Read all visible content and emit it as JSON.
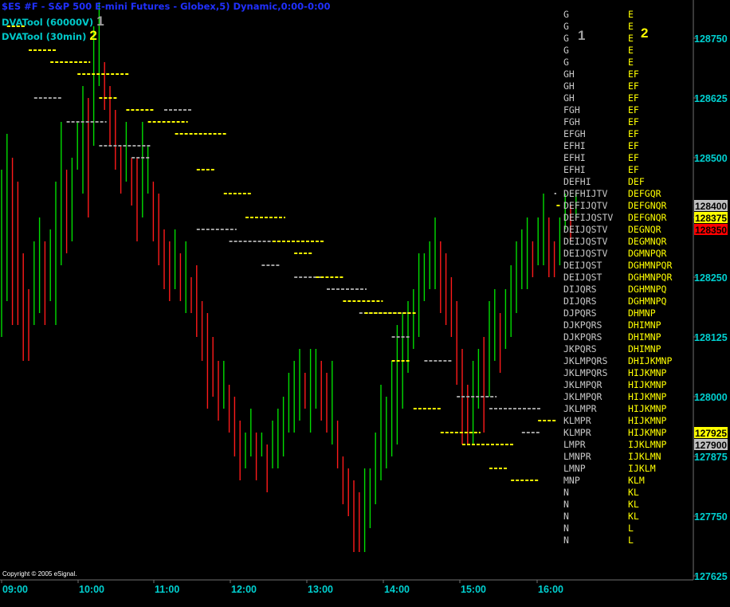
{
  "header": {
    "title": "$ES #F - S&P 500 E-mini Futures - Globex,5) Dynamic,0:00-0:00",
    "study1_label": "DVATool (60000V)",
    "study1_num": "1",
    "study2_label": "DVATool (30min)",
    "study2_num": "2"
  },
  "copyright": "Copyright © 2005 eSignal.",
  "colors": {
    "background": "#000000",
    "title": "#2030ff",
    "study_label": "#00c8c8",
    "axis_text": "#00d0d0",
    "up_bar": "#00dd00",
    "down_bar": "#ff1a1a",
    "study1": "#a0a0a0",
    "study2": "#ffff00",
    "price_gray_tag": "#c0c0c0",
    "price_yellow_tag": "#ffff00",
    "price_red_tag": "#ff0000"
  },
  "chart_data": {
    "type": "ohlc",
    "x_tick_labels": [
      "09:00",
      "10:00",
      "11:00",
      "12:00",
      "13:00",
      "14:00",
      "15:00",
      "16:00"
    ],
    "y_tick_values": [
      1287.5,
      1286.25,
      1285.0,
      1283.75,
      1282.5,
      1281.25,
      1280.0,
      1278.75,
      1277.5,
      1276.25
    ],
    "y_tick_labels": [
      "128750",
      "128625",
      "128500",
      "128375",
      "128250",
      "128125",
      "128000",
      "127875",
      "127750",
      "127625"
    ],
    "ylim": [
      1276.25,
      1288.25
    ],
    "price_tags": [
      {
        "label": "128400",
        "color": "gray"
      },
      {
        "label": "128375",
        "color": "yellow"
      },
      {
        "label": "128350",
        "color": "red"
      },
      {
        "label": "127925",
        "color": "yellow"
      },
      {
        "label": "127900",
        "color": "gray"
      }
    ],
    "tpo_profile": {
      "headers": {
        "col1": "1",
        "col2": "2"
      },
      "rows": [
        {
          "price": 1288.0,
          "c1": "G",
          "c2": "E"
        },
        {
          "price": 1287.75,
          "c1": "G",
          "c2": "E"
        },
        {
          "price": 1287.5,
          "c1": "G",
          "c2": "E"
        },
        {
          "price": 1287.25,
          "c1": "G",
          "c2": "E"
        },
        {
          "price": 1287.0,
          "c1": "G",
          "c2": "E"
        },
        {
          "price": 1286.75,
          "c1": "GH",
          "c2": "EF"
        },
        {
          "price": 1286.5,
          "c1": "GH",
          "c2": "EF"
        },
        {
          "price": 1286.25,
          "c1": "GH",
          "c2": "EF"
        },
        {
          "price": 1286.0,
          "c1": "FGH",
          "c2": "EF"
        },
        {
          "price": 1285.75,
          "c1": "FGH",
          "c2": "EF"
        },
        {
          "price": 1285.5,
          "c1": "EFGH",
          "c2": "EF"
        },
        {
          "price": 1285.25,
          "c1": "EFHI",
          "c2": "EF"
        },
        {
          "price": 1285.0,
          "c1": "EFHI",
          "c2": "EF"
        },
        {
          "price": 1284.75,
          "c1": "EFHI",
          "c2": "EF"
        },
        {
          "price": 1284.5,
          "c1": "DEFHI",
          "c2": "DEF"
        },
        {
          "price": 1284.25,
          "c1": "DEFHIJTV",
          "c2": "DEFGQR"
        },
        {
          "price": 1284.0,
          "c1": "DEFIJQTV",
          "c2": "DEFGNQR"
        },
        {
          "price": 1283.75,
          "c1": "DEFIJQSTV",
          "c2": "DEFGNQR"
        },
        {
          "price": 1283.5,
          "c1": "DEIJQSTV",
          "c2": "DEGNQR"
        },
        {
          "price": 1283.25,
          "c1": "DEIJQSTV",
          "c2": "DEGMNQR"
        },
        {
          "price": 1283.0,
          "c1": "DEIJQSTV",
          "c2": "DGMNPQR"
        },
        {
          "price": 1282.75,
          "c1": "DEIJQST",
          "c2": "DGHMNPQR"
        },
        {
          "price": 1282.5,
          "c1": "DEIJQST",
          "c2": "DGHMNPQR"
        },
        {
          "price": 1282.25,
          "c1": "DIJQRS",
          "c2": "DGHMNPQ"
        },
        {
          "price": 1282.0,
          "c1": "DIJQRS",
          "c2": "DGHMNPQ"
        },
        {
          "price": 1281.75,
          "c1": "DJPQRS",
          "c2": "DHMNP"
        },
        {
          "price": 1281.5,
          "c1": "DJKPQRS",
          "c2": "DHIMNP"
        },
        {
          "price": 1281.25,
          "c1": "DJKPQRS",
          "c2": "DHIMNP"
        },
        {
          "price": 1281.0,
          "c1": "JKPQRS",
          "c2": "DHIMNP"
        },
        {
          "price": 1280.75,
          "c1": "JKLMPQRS",
          "c2": "DHIJKMNP"
        },
        {
          "price": 1280.5,
          "c1": "JKLMPQRS",
          "c2": "HIJKMNP"
        },
        {
          "price": 1280.25,
          "c1": "JKLMPQR",
          "c2": "HIJKMNP"
        },
        {
          "price": 1280.0,
          "c1": "JKLMPQR",
          "c2": "HIJKMNP"
        },
        {
          "price": 1279.75,
          "c1": "JKLMPR",
          "c2": "HIJKMNP"
        },
        {
          "price": 1279.5,
          "c1": "KLMPR",
          "c2": "HIJKMNP"
        },
        {
          "price": 1279.25,
          "c1": "KLMPR",
          "c2": "HIJKMNP"
        },
        {
          "price": 1279.0,
          "c1": "LMPR",
          "c2": "IJKLMNP"
        },
        {
          "price": 1278.75,
          "c1": "LMNPR",
          "c2": "IJKLMN"
        },
        {
          "price": 1278.5,
          "c1": "LMNP",
          "c2": "IJKLM"
        },
        {
          "price": 1278.25,
          "c1": "MNP",
          "c2": "KLM"
        },
        {
          "price": 1278.0,
          "c1": "N",
          "c2": "KL"
        },
        {
          "price": 1277.75,
          "c1": "N",
          "c2": "KL"
        },
        {
          "price": 1277.5,
          "c1": "N",
          "c2": "KL"
        },
        {
          "price": 1277.25,
          "c1": "N",
          "c2": "L"
        },
        {
          "price": 1277.0,
          "c1": "N",
          "c2": "L"
        }
      ]
    },
    "ohlc": [
      [
        1284.75,
        1281.25
      ],
      [
        1285.5,
        1282.0
      ],
      [
        1285.0,
        1281.5
      ],
      [
        1284.5,
        1281.5
      ],
      [
        1283.0,
        1280.75
      ],
      [
        1282.25,
        1280.75
      ],
      [
        1283.25,
        1281.5
      ],
      [
        1283.75,
        1281.75
      ],
      [
        1283.25,
        1281.5
      ],
      [
        1283.5,
        1282.0
      ],
      [
        1284.5,
        1281.5
      ],
      [
        1285.75,
        1282.75
      ],
      [
        1284.75,
        1283.0
      ],
      [
        1285.0,
        1283.25
      ],
      [
        1285.75,
        1284.75
      ],
      [
        1286.5,
        1284.25
      ],
      [
        1286.25,
        1283.75
      ],
      [
        1287.75,
        1285.25
      ],
      [
        1288.25,
        1286.5
      ],
      [
        1287.0,
        1286.0
      ],
      [
        1286.5,
        1285.25
      ],
      [
        1286.0,
        1284.75
      ],
      [
        1285.25,
        1284.25
      ],
      [
        1285.75,
        1284.5
      ],
      [
        1285.0,
        1284.0
      ],
      [
        1285.0,
        1283.25
      ],
      [
        1285.75,
        1283.75
      ],
      [
        1285.25,
        1284.25
      ],
      [
        1284.5,
        1283.25
      ],
      [
        1284.25,
        1282.75
      ],
      [
        1283.5,
        1282.25
      ],
      [
        1283.25,
        1282.0
      ],
      [
        1283.5,
        1282.25
      ],
      [
        1283.0,
        1282.0
      ],
      [
        1283.25,
        1281.75
      ],
      [
        1282.5,
        1281.75
      ],
      [
        1282.75,
        1281.25
      ],
      [
        1282.0,
        1280.75
      ],
      [
        1281.75,
        1279.75
      ],
      [
        1281.25,
        1280.0
      ],
      [
        1280.75,
        1279.5
      ],
      [
        1280.75,
        1279.75
      ],
      [
        1280.25,
        1279.25
      ],
      [
        1280.0,
        1278.75
      ],
      [
        1279.5,
        1278.25
      ],
      [
        1279.25,
        1278.5
      ],
      [
        1279.75,
        1278.75
      ],
      [
        1279.25,
        1278.25
      ],
      [
        1279.25,
        1278.75
      ],
      [
        1279.0,
        1278.0
      ],
      [
        1279.5,
        1278.5
      ],
      [
        1279.75,
        1278.5
      ],
      [
        1280.0,
        1278.75
      ],
      [
        1280.5,
        1279.25
      ],
      [
        1280.75,
        1279.25
      ],
      [
        1281.0,
        1279.5
      ],
      [
        1280.5,
        1279.75
      ],
      [
        1281.0,
        1279.25
      ],
      [
        1281.0,
        1279.75
      ],
      [
        1280.75,
        1279.5
      ],
      [
        1280.5,
        1279.25
      ],
      [
        1280.75,
        1279.0
      ],
      [
        1279.5,
        1278.5
      ],
      [
        1278.75,
        1277.75
      ],
      [
        1278.5,
        1277.5
      ],
      [
        1278.25,
        1276.75
      ],
      [
        1278.0,
        1276.75
      ],
      [
        1278.5,
        1276.75
      ],
      [
        1278.5,
        1277.25
      ],
      [
        1279.25,
        1277.75
      ],
      [
        1280.25,
        1278.25
      ],
      [
        1280.0,
        1278.5
      ],
      [
        1280.75,
        1278.75
      ],
      [
        1281.5,
        1279.0
      ],
      [
        1281.75,
        1279.75
      ],
      [
        1282.0,
        1280.5
      ],
      [
        1282.25,
        1281.0
      ],
      [
        1283.0,
        1281.25
      ],
      [
        1283.0,
        1282.0
      ],
      [
        1283.25,
        1282.25
      ],
      [
        1283.75,
        1282.25
      ],
      [
        1283.25,
        1281.75
      ],
      [
        1283.0,
        1281.5
      ],
      [
        1282.5,
        1281.25
      ],
      [
        1282.0,
        1280.25
      ],
      [
        1281.0,
        1279.0
      ],
      [
        1280.25,
        1279.0
      ],
      [
        1280.75,
        1279.0
      ],
      [
        1281.0,
        1279.75
      ],
      [
        1281.25,
        1279.25
      ],
      [
        1282.0,
        1280.0
      ],
      [
        1282.25,
        1280.75
      ],
      [
        1281.75,
        1280.5
      ],
      [
        1282.25,
        1281.0
      ],
      [
        1282.75,
        1281.25
      ],
      [
        1283.25,
        1281.75
      ],
      [
        1283.5,
        1282.25
      ],
      [
        1283.75,
        1282.25
      ],
      [
        1283.25,
        1282.5
      ],
      [
        1283.75,
        1282.75
      ],
      [
        1284.25,
        1282.75
      ],
      [
        1283.75,
        1282.5
      ],
      [
        1283.25,
        1282.5
      ],
      [
        1283.75,
        1282.75
      ],
      [
        1284.25,
        1283.5
      ],
      [
        1284.0,
        1283.25
      ],
      [
        1284.25,
        1283.75
      ]
    ],
    "va_lines_study1": [
      [
        1287.75,
        1287.75
      ],
      [
        1286.25,
        1286.75
      ],
      [
        1285.75,
        1285.75
      ],
      [
        1285.25,
        1285.5
      ],
      [
        1285.0,
        1285.0
      ],
      [
        1286.0,
        1286.0
      ],
      [
        1283.5,
        1283.5
      ],
      [
        1283.25,
        1283.25
      ],
      [
        1282.75,
        1282.75
      ],
      [
        1282.5,
        1282.5
      ],
      [
        1282.25,
        1282.25
      ],
      [
        1281.75,
        1281.75
      ],
      [
        1281.25,
        1281.25
      ],
      [
        1280.75,
        1280.75
      ],
      [
        1280.0,
        1280.0
      ],
      [
        1279.75,
        1279.75
      ],
      [
        1279.25,
        1279.25
      ],
      [
        1284.25,
        1284.25
      ]
    ],
    "va_lines_study2": [
      [
        1287.75,
        1287.75
      ],
      [
        1287.25,
        1287.25
      ],
      [
        1287.0,
        1287.0
      ],
      [
        1286.75,
        1286.75
      ],
      [
        1286.25,
        1286.25
      ],
      [
        1286.0,
        1286.0
      ],
      [
        1285.75,
        1285.75
      ],
      [
        1285.5,
        1285.5
      ],
      [
        1284.75,
        1284.75
      ],
      [
        1284.25,
        1284.25
      ],
      [
        1283.75,
        1283.75
      ],
      [
        1283.25,
        1283.25
      ],
      [
        1283.0,
        1283.0
      ],
      [
        1282.5,
        1282.5
      ],
      [
        1282.0,
        1282.0
      ],
      [
        1281.75,
        1281.75
      ],
      [
        1280.75,
        1280.75
      ],
      [
        1279.75,
        1279.75
      ],
      [
        1279.25,
        1279.25
      ],
      [
        1279.0,
        1279.0
      ],
      [
        1278.5,
        1278.5
      ],
      [
        1278.25,
        1278.25
      ],
      [
        1279.5,
        1279.5
      ],
      [
        1284.0,
        1284.0
      ]
    ]
  }
}
